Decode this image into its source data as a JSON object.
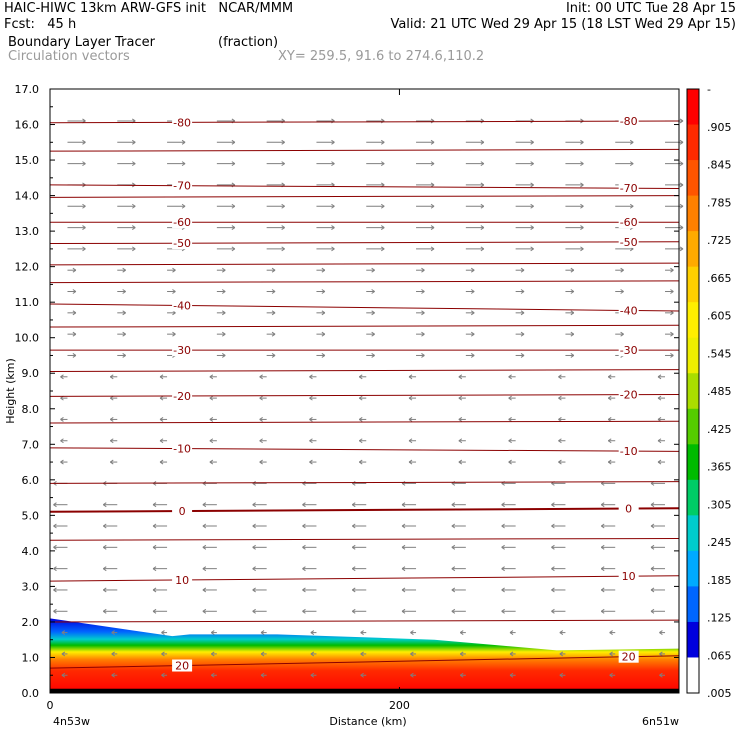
{
  "header": {
    "line1_left": "HAIC-HIWC 13km ARW-GFS init   NCAR/MMM",
    "line1_right": "Init: 00 UTC Tue 28 Apr 15",
    "line2_left": "Fcst:   45 h",
    "line2_right": "Valid: 21 UTC Wed 29 Apr 15 (18 LST Wed 29 Apr 15)",
    "line3_left": "Boundary Layer Tracer",
    "line3_units": "(fraction)",
    "line4_left": "Circulation vectors",
    "line4_xy": "XY= 259.5, 91.6 to 274.6,110.2"
  },
  "colors": {
    "contour": "#8b0000",
    "vector": "#7f7f7f",
    "frame": "#000000"
  },
  "chart_data": {
    "type": "heatmap",
    "xlabel": "Distance (km)",
    "ylabel": "Height (km)",
    "xlim": [
      0,
      360
    ],
    "ylim": [
      0.0,
      17.0
    ],
    "x_ticks": [
      0,
      200
    ],
    "x_endpoints": {
      "left": "4n53w",
      "right": "6n51w"
    },
    "y_ticks": [
      "0.0",
      "1.0",
      "2.0",
      "3.0",
      "4.0",
      "5.0",
      "6.0",
      "7.0",
      "8.0",
      "9.0",
      "10.0",
      "11.0",
      "12.0",
      "13.0",
      "14.0",
      "15.0",
      "16.0",
      "17.0"
    ],
    "grid": false,
    "colorbar": {
      "labels": [
        "-",
        ".905",
        ".845",
        ".785",
        ".725",
        ".665",
        ".605",
        ".545",
        ".485",
        ".425",
        ".365",
        ".305",
        ".245",
        ".185",
        ".125",
        ".065",
        ".005"
      ],
      "colors": [
        "#ff0000",
        "#ff2a00",
        "#ff5500",
        "#ff8000",
        "#ffaa00",
        "#ffd000",
        "#ffee00",
        "#eeee00",
        "#aadd00",
        "#55cc00",
        "#00bb00",
        "#00cc66",
        "#00cccc",
        "#00aaff",
        "#0066ff",
        "#0000dd",
        "#ffffff"
      ]
    },
    "temperature_contours": [
      {
        "label": "20",
        "heights": [
          0.7,
          1.05
        ]
      },
      {
        "label": "10",
        "heights": [
          3.15,
          3.3
        ]
      },
      {
        "label": "0",
        "heights": [
          5.1,
          5.2
        ]
      },
      {
        "label": "-10",
        "heights": [
          6.9,
          6.8
        ]
      },
      {
        "label": "-20",
        "heights": [
          8.35,
          8.4
        ]
      },
      {
        "label": "-30",
        "heights": [
          9.65,
          9.65
        ]
      },
      {
        "label": "-40",
        "heights": [
          10.95,
          10.75
        ]
      },
      {
        "label": "-50",
        "heights": [
          12.65,
          12.7
        ]
      },
      {
        "label": "-60",
        "heights": [
          13.25,
          13.25
        ]
      },
      {
        "label": "-70",
        "heights": [
          14.3,
          14.2
        ]
      },
      {
        "label": "-80",
        "heights": [
          16.05,
          16.1
        ]
      }
    ],
    "tracer_top_km": [
      {
        "x": 0,
        "top": 2.1
      },
      {
        "x": 70,
        "top": 1.6
      },
      {
        "x": 80,
        "top": 1.65
      },
      {
        "x": 130,
        "top": 1.65
      },
      {
        "x": 220,
        "top": 1.5
      },
      {
        "x": 290,
        "top": 1.2
      },
      {
        "x": 360,
        "top": 1.25
      }
    ]
  }
}
